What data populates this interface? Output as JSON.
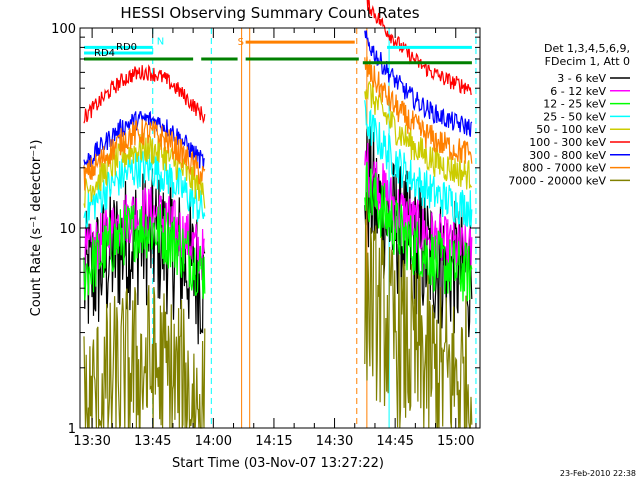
{
  "chart_data": {
    "type": "line",
    "title": "HESSI Observing Summary Count Rates",
    "xlabel": "Start Time (03-Nov-07 13:27:22)",
    "ylabel": "Count Rate (s⁻¹ detector⁻¹)",
    "yscale": "log",
    "xlim_minutes": [
      -3,
      96
    ],
    "ylim": [
      1,
      100
    ],
    "x_ticks": [
      {
        "m": 0,
        "label": "13:30"
      },
      {
        "m": 15,
        "label": "13:45"
      },
      {
        "m": 30,
        "label": "14:00"
      },
      {
        "m": 45,
        "label": "14:15"
      },
      {
        "m": 60,
        "label": "14:30"
      },
      {
        "m": 75,
        "label": "14:45"
      },
      {
        "m": 90,
        "label": "15:00"
      }
    ],
    "y_ticks": [
      {
        "v": 1,
        "label": "1"
      },
      {
        "v": 10,
        "label": "10"
      },
      {
        "v": 100,
        "label": "100"
      }
    ],
    "legend_header": [
      "Det 1,3,4,5,6,9,",
      "FDecim 1, Att 0"
    ],
    "series": [
      {
        "name": "3 - 6 keV",
        "color": "#000000",
        "b1": 9,
        "b2": 7,
        "noise": 0.35
      },
      {
        "name": "6 - 12 keV",
        "color": "#ff00ff",
        "b1": 12,
        "b2": 9,
        "noise": 0.14
      },
      {
        "name": "12 - 25 keV",
        "color": "#00ff00",
        "b1": 10,
        "b2": 7,
        "noise": 0.16
      },
      {
        "name": "25 - 50 keV",
        "color": "#00ffff",
        "b1": 20,
        "b2": 15,
        "noise": 0.1
      },
      {
        "name": "50 - 100 keV",
        "color": "#cccc00",
        "b1": 25,
        "b2": 22,
        "noise": 0.08
      },
      {
        "name": "100 - 300 keV",
        "color": "#ff0000",
        "b1": 60,
        "b2": 60,
        "noise": 0.04
      },
      {
        "name": "300 - 800 keV",
        "color": "#0000ff",
        "b1": 35,
        "b2": 38,
        "noise": 0.05
      },
      {
        "name": "800 - 7000 keV",
        "color": "#ff8000",
        "b1": 30,
        "b2": 28,
        "noise": 0.07
      },
      {
        "name": "7000 - 20000 keV",
        "color": "#808000",
        "b1": 2,
        "b2": 2,
        "noise": 0.45
      }
    ],
    "flag_bars": [
      {
        "label": "N",
        "color": "#00ffff",
        "y": 80,
        "x0": -2,
        "x1": 15
      },
      {
        "label": "",
        "color": "#00ffff",
        "y": 80,
        "x0": 73,
        "x1": 94
      },
      {
        "label": "RD0",
        "color": "#00ffff",
        "y": 75,
        "x0": -2,
        "x1": 15
      },
      {
        "label": "RD4",
        "color": "#008000",
        "y": 70,
        "x0": -2,
        "x1": 25
      },
      {
        "label": "",
        "color": "#008000",
        "y": 70,
        "x0": 27,
        "x1": 36
      },
      {
        "label": "",
        "color": "#008000",
        "y": 70,
        "x0": 38,
        "x1": 66
      },
      {
        "label": "",
        "color": "#008000",
        "y": 67,
        "x0": 67,
        "x1": 94
      },
      {
        "label": "S",
        "color": "#ff8000",
        "y": 85,
        "x0": 38,
        "x1": 65
      }
    ],
    "vlines": [
      {
        "m": -3,
        "color": "#00ffff",
        "dashed": false
      },
      {
        "m": 15,
        "color": "#00ffff",
        "dashed": true
      },
      {
        "m": 29.5,
        "color": "#00ffff",
        "dashed": true
      },
      {
        "m": 37,
        "color": "#ff8000",
        "dashed": false
      },
      {
        "m": 39,
        "color": "#ff8000",
        "dashed": false
      },
      {
        "m": 65.5,
        "color": "#ff8000",
        "dashed": true
      },
      {
        "m": 68,
        "color": "#ff8000",
        "dashed": false
      },
      {
        "m": 73.5,
        "color": "#00ffff",
        "dashed": false
      },
      {
        "m": 95,
        "color": "#00ffff",
        "dashed": true
      }
    ],
    "grid": false
  },
  "footer": {
    "timestamp": "23-Feb-2010 22:38"
  }
}
